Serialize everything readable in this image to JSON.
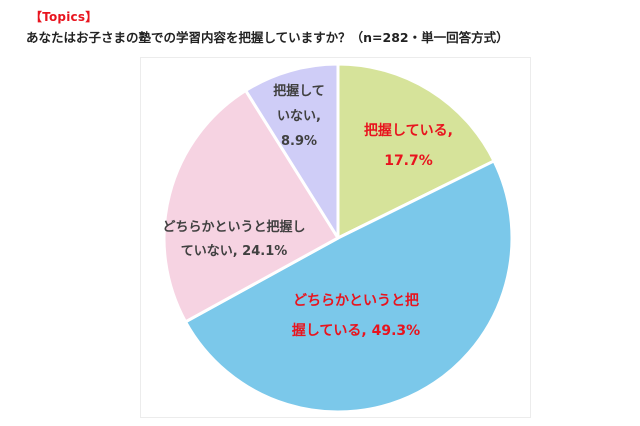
{
  "header": {
    "topics_label": "【Topics】",
    "question": "あなたはお子さまの塾での学習内容を把握していますか？（n=282・単一回答方式）"
  },
  "labels": {
    "aware": {
      "line1": "把握している,",
      "line2": "17.7%"
    },
    "somewhat_aware": {
      "line1": "どちらかというと把",
      "line2": "握している, 49.3%"
    },
    "somewhat_not_aware": {
      "line1": "どちらかというと把握し",
      "line2": "ていない, 24.1%"
    },
    "not_aware": {
      "line1": "把握して",
      "line2": "いない,",
      "line3": "8.9%"
    }
  },
  "colors": {
    "aware": "#d6e39a",
    "somewhat_aware": "#7bc8ea",
    "somewhat_not_aware": "#f6d3e2",
    "not_aware": "#cfcdf7",
    "highlight_text": "#e8141e",
    "normal_text": "#404040"
  },
  "chart_data": {
    "type": "pie",
    "title": "あなたはお子さまの塾での学習内容を把握していますか？（n=282・単一回答方式）",
    "n": 282,
    "start_angle": "12 o'clock",
    "direction": "clockwise",
    "categories": [
      "把握している",
      "どちらかというと把握している",
      "どちらかというと把握していない",
      "把握していない"
    ],
    "values": [
      17.7,
      49.3,
      24.1,
      8.9
    ],
    "unit": "%",
    "colors": [
      "#d6e39a",
      "#7bc8ea",
      "#f6d3e2",
      "#cfcdf7"
    ],
    "legend": "none (inline data labels)"
  }
}
